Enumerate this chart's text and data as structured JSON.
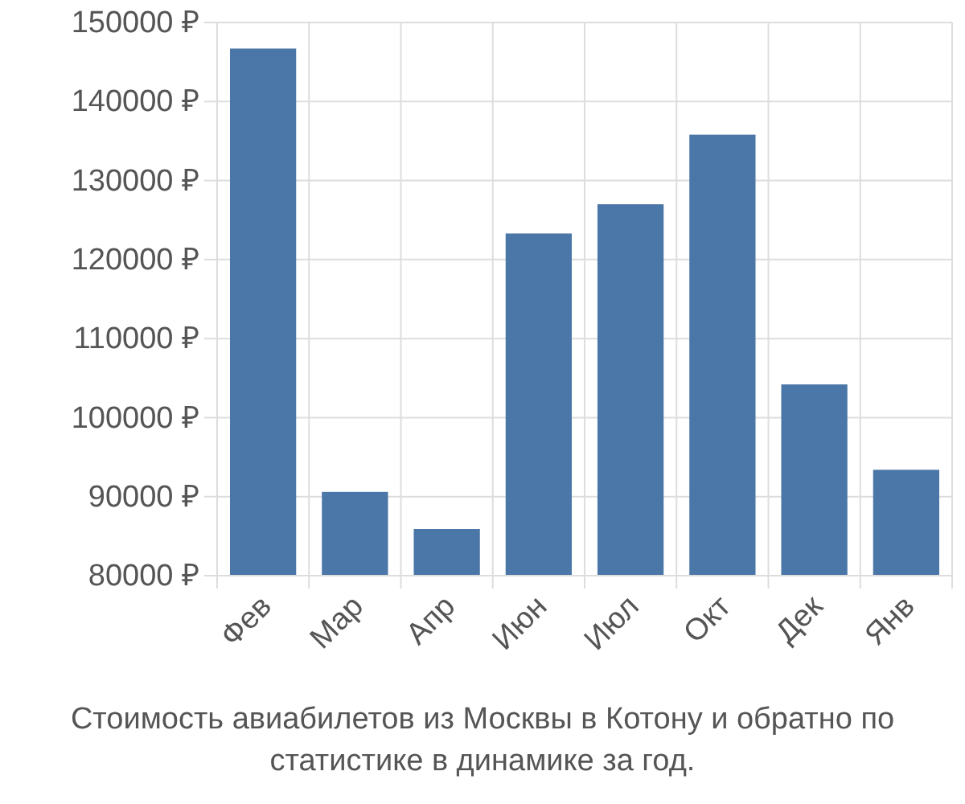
{
  "chart_data": {
    "type": "bar",
    "title": "Стоимость авиабилетов из Москвы в Котону и обратно по статистике в динамике за год.",
    "categories": [
      "Фев",
      "Мар",
      "Апр",
      "Июн",
      "Июл",
      "Окт",
      "Дек",
      "Янв"
    ],
    "values": [
      146700,
      90600,
      85900,
      123300,
      127000,
      135800,
      104200,
      93400
    ],
    "color": "#4a76a8",
    "ylim": [
      80000,
      150000
    ],
    "yticks": [
      {
        "value": 80000,
        "label": "80000 ₽"
      },
      {
        "value": 90000,
        "label": "90000 ₽"
      },
      {
        "value": 100000,
        "label": "100000 ₽"
      },
      {
        "value": 110000,
        "label": "110000 ₽"
      },
      {
        "value": 120000,
        "label": "120000 ₽"
      },
      {
        "value": 130000,
        "label": "130000 ₽"
      },
      {
        "value": 140000,
        "label": "140000 ₽"
      },
      {
        "value": 150000,
        "label": "150000 ₽"
      }
    ],
    "grid": true
  }
}
